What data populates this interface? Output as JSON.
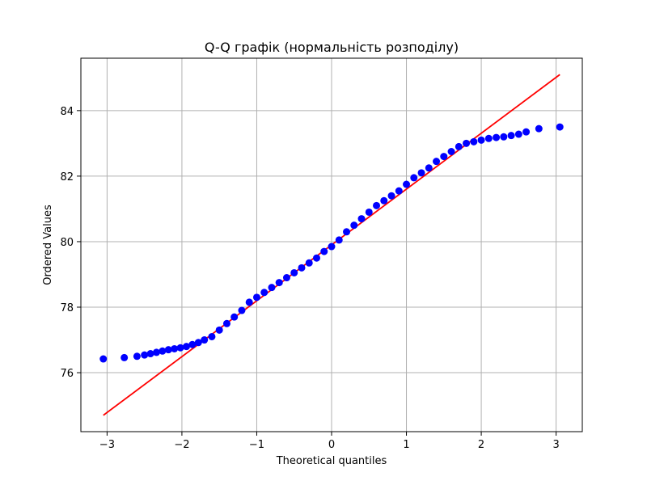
{
  "chart_data": {
    "type": "scatter",
    "title": "Q-Q графік (нормальність розподілу)",
    "xlabel": "Theoretical quantiles",
    "ylabel": "Ordered Values",
    "xlim": [
      -3.35,
      3.35
    ],
    "ylim": [
      74.2,
      85.6
    ],
    "xticks": [
      -3,
      -2,
      -1,
      0,
      1,
      2,
      3
    ],
    "yticks": [
      76,
      78,
      80,
      82,
      84
    ],
    "grid": true,
    "marker_color": "#0000ff",
    "line_color": "#ff0000",
    "reference_line": {
      "x": [
        -3.05,
        3.05
      ],
      "y": [
        74.7,
        85.1
      ]
    },
    "points": {
      "x": [
        -3.05,
        -2.77,
        -2.6,
        -2.5,
        -2.42,
        -2.34,
        -2.26,
        -2.18,
        -2.1,
        -2.02,
        -1.94,
        -1.86,
        -1.78,
        -1.7,
        -1.6,
        -1.5,
        -1.4,
        -1.3,
        -1.2,
        -1.1,
        -1.0,
        -0.9,
        -0.8,
        -0.7,
        -0.6,
        -0.5,
        -0.4,
        -0.3,
        -0.2,
        -0.1,
        0.0,
        0.1,
        0.2,
        0.3,
        0.4,
        0.5,
        0.6,
        0.7,
        0.8,
        0.9,
        1.0,
        1.1,
        1.2,
        1.3,
        1.4,
        1.5,
        1.6,
        1.7,
        1.8,
        1.9,
        2.0,
        2.1,
        2.2,
        2.3,
        2.4,
        2.5,
        2.6,
        2.77,
        3.05
      ],
      "y": [
        76.42,
        76.46,
        76.5,
        76.54,
        76.58,
        76.62,
        76.66,
        76.7,
        76.73,
        76.76,
        76.8,
        76.86,
        76.92,
        77.0,
        77.1,
        77.3,
        77.5,
        77.7,
        77.9,
        78.15,
        78.3,
        78.45,
        78.6,
        78.75,
        78.9,
        79.05,
        79.2,
        79.35,
        79.5,
        79.7,
        79.85,
        80.05,
        80.3,
        80.5,
        80.7,
        80.9,
        81.1,
        81.25,
        81.4,
        81.55,
        81.75,
        81.95,
        82.1,
        82.25,
        82.45,
        82.6,
        82.75,
        82.9,
        83.0,
        83.05,
        83.1,
        83.15,
        83.18,
        83.2,
        83.24,
        83.28,
        83.35,
        83.45,
        83.5
      ]
    }
  }
}
